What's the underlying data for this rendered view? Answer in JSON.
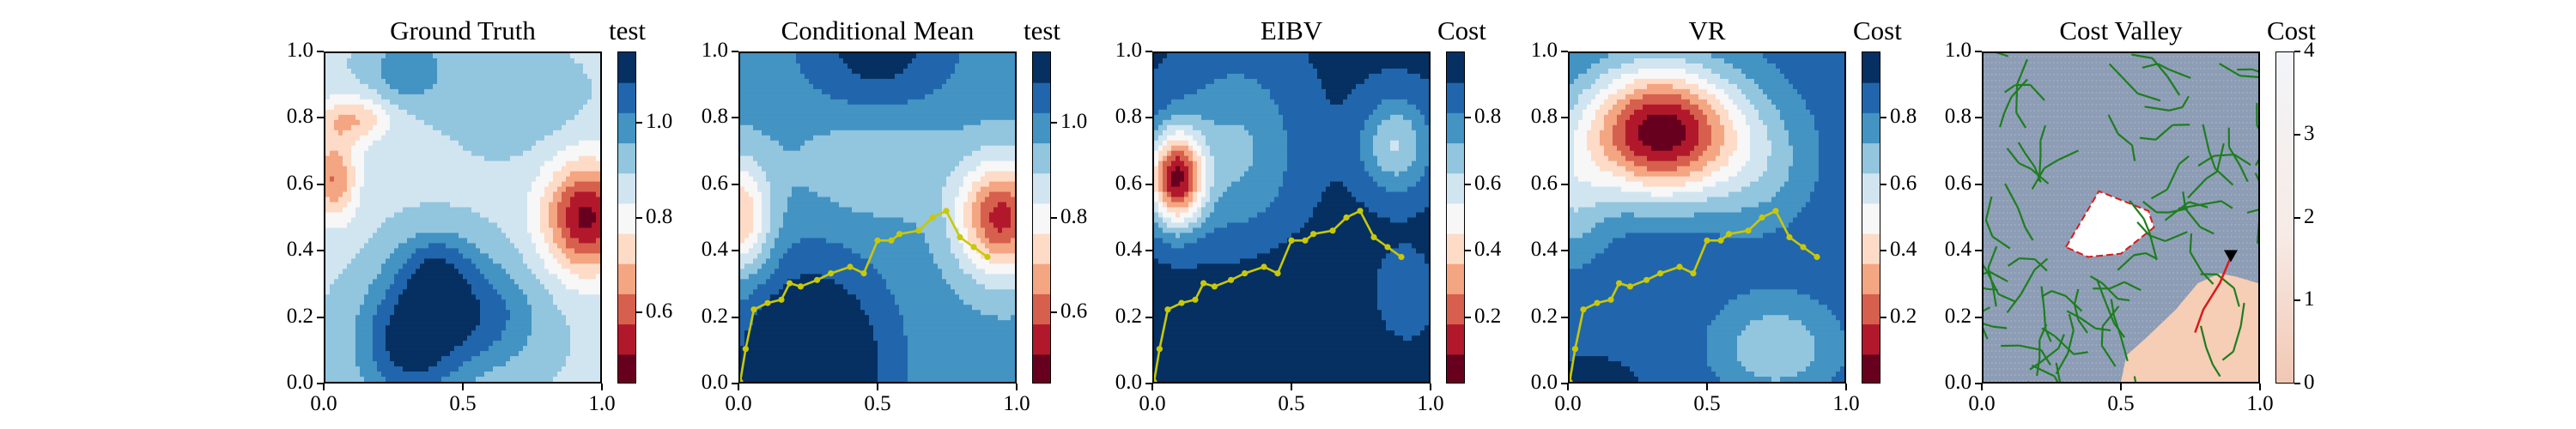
{
  "chart_data": [
    {
      "type": "heatmap",
      "title": "Ground Truth",
      "colorbar_label": "test",
      "xlim": [
        0.0,
        1.0
      ],
      "ylim": [
        0.0,
        1.0
      ],
      "x_ticks": [
        "0.0",
        "0.5",
        "1.0"
      ],
      "y_ticks": [
        "0.0",
        "0.2",
        "0.4",
        "0.6",
        "0.8",
        "1.0"
      ],
      "colorbar_ticks": [
        "0.6",
        "0.8",
        "1.0"
      ],
      "colorbar_range": [
        0.45,
        1.15
      ],
      "colormap": "RdBu"
    },
    {
      "type": "heatmap",
      "title": "Conditional Mean",
      "colorbar_label": "test",
      "xlim": [
        0.0,
        1.0
      ],
      "ylim": [
        0.0,
        1.0
      ],
      "x_ticks": [
        "0.0",
        "0.5",
        "1.0"
      ],
      "y_ticks": [
        "0.0",
        "0.2",
        "0.4",
        "0.6",
        "0.8",
        "1.0"
      ],
      "colorbar_ticks": [
        "0.6",
        "0.8",
        "1.0"
      ],
      "colorbar_range": [
        0.45,
        1.15
      ],
      "colormap": "RdBu",
      "trajectory_color": "#c8c80a",
      "trajectory": [
        [
          0.0,
          0.0
        ],
        [
          0.02,
          0.1
        ],
        [
          0.05,
          0.22
        ],
        [
          0.1,
          0.24
        ],
        [
          0.15,
          0.25
        ],
        [
          0.18,
          0.3
        ],
        [
          0.22,
          0.29
        ],
        [
          0.28,
          0.31
        ],
        [
          0.33,
          0.33
        ],
        [
          0.4,
          0.35
        ],
        [
          0.45,
          0.33
        ],
        [
          0.5,
          0.43
        ],
        [
          0.55,
          0.43
        ],
        [
          0.58,
          0.45
        ],
        [
          0.65,
          0.46
        ],
        [
          0.7,
          0.5
        ],
        [
          0.75,
          0.52
        ],
        [
          0.8,
          0.44
        ],
        [
          0.85,
          0.41
        ],
        [
          0.9,
          0.38
        ]
      ]
    },
    {
      "type": "heatmap",
      "title": "EIBV",
      "colorbar_label": "Cost",
      "xlim": [
        0.0,
        1.0
      ],
      "ylim": [
        0.0,
        1.0
      ],
      "x_ticks": [
        "0.0",
        "0.5",
        "1.0"
      ],
      "y_ticks": [
        "0.0",
        "0.2",
        "0.4",
        "0.6",
        "0.8",
        "1.0"
      ],
      "colorbar_ticks": [
        "0.2",
        "0.4",
        "0.6",
        "0.8"
      ],
      "colorbar_range": [
        0.0,
        1.0
      ],
      "colormap": "RdBu",
      "trajectory_color": "#c8c80a",
      "trajectory": [
        [
          0.0,
          0.0
        ],
        [
          0.02,
          0.1
        ],
        [
          0.05,
          0.22
        ],
        [
          0.1,
          0.24
        ],
        [
          0.15,
          0.25
        ],
        [
          0.18,
          0.3
        ],
        [
          0.22,
          0.29
        ],
        [
          0.28,
          0.31
        ],
        [
          0.33,
          0.33
        ],
        [
          0.4,
          0.35
        ],
        [
          0.45,
          0.33
        ],
        [
          0.5,
          0.43
        ],
        [
          0.55,
          0.43
        ],
        [
          0.58,
          0.45
        ],
        [
          0.65,
          0.46
        ],
        [
          0.7,
          0.5
        ],
        [
          0.75,
          0.52
        ],
        [
          0.8,
          0.44
        ],
        [
          0.85,
          0.41
        ],
        [
          0.9,
          0.38
        ]
      ]
    },
    {
      "type": "heatmap",
      "title": "VR",
      "colorbar_label": "Cost",
      "xlim": [
        0.0,
        1.0
      ],
      "ylim": [
        0.0,
        1.0
      ],
      "x_ticks": [
        "0.0",
        "0.5",
        "1.0"
      ],
      "y_ticks": [
        "0.0",
        "0.2",
        "0.4",
        "0.6",
        "0.8",
        "1.0"
      ],
      "colorbar_ticks": [
        "0.2",
        "0.4",
        "0.6",
        "0.8"
      ],
      "colorbar_range": [
        0.0,
        1.0
      ],
      "colormap": "RdBu",
      "trajectory_color": "#c8c80a",
      "trajectory": [
        [
          0.0,
          0.0
        ],
        [
          0.02,
          0.1
        ],
        [
          0.05,
          0.22
        ],
        [
          0.1,
          0.24
        ],
        [
          0.15,
          0.25
        ],
        [
          0.18,
          0.3
        ],
        [
          0.22,
          0.29
        ],
        [
          0.28,
          0.31
        ],
        [
          0.33,
          0.33
        ],
        [
          0.4,
          0.35
        ],
        [
          0.45,
          0.33
        ],
        [
          0.5,
          0.43
        ],
        [
          0.55,
          0.43
        ],
        [
          0.58,
          0.45
        ],
        [
          0.65,
          0.46
        ],
        [
          0.7,
          0.5
        ],
        [
          0.75,
          0.52
        ],
        [
          0.8,
          0.44
        ],
        [
          0.85,
          0.41
        ],
        [
          0.9,
          0.38
        ]
      ]
    },
    {
      "type": "heatmap",
      "title": "Cost Valley",
      "colorbar_label": "Cost",
      "xlim": [
        0.0,
        1.0
      ],
      "ylim": [
        0.0,
        1.0
      ],
      "x_ticks": [
        "0.0",
        "0.5",
        "1.0"
      ],
      "y_ticks": [
        "0.0",
        "0.2",
        "0.4",
        "0.6",
        "0.8",
        "1.0"
      ],
      "colorbar_ticks": [
        "0",
        "1",
        "2",
        "3",
        "4"
      ],
      "colorbar_range": [
        0,
        4
      ],
      "colormap": "cost",
      "tree_color": "#1e7d1e",
      "obstacle_boundary_color": "#d81b1b",
      "current_location": [
        0.9,
        0.38
      ],
      "current_location_color": "#000000",
      "planned_path": [
        [
          0.9,
          0.38
        ],
        [
          0.86,
          0.3
        ],
        [
          0.8,
          0.22
        ],
        [
          0.77,
          0.15
        ]
      ]
    }
  ]
}
